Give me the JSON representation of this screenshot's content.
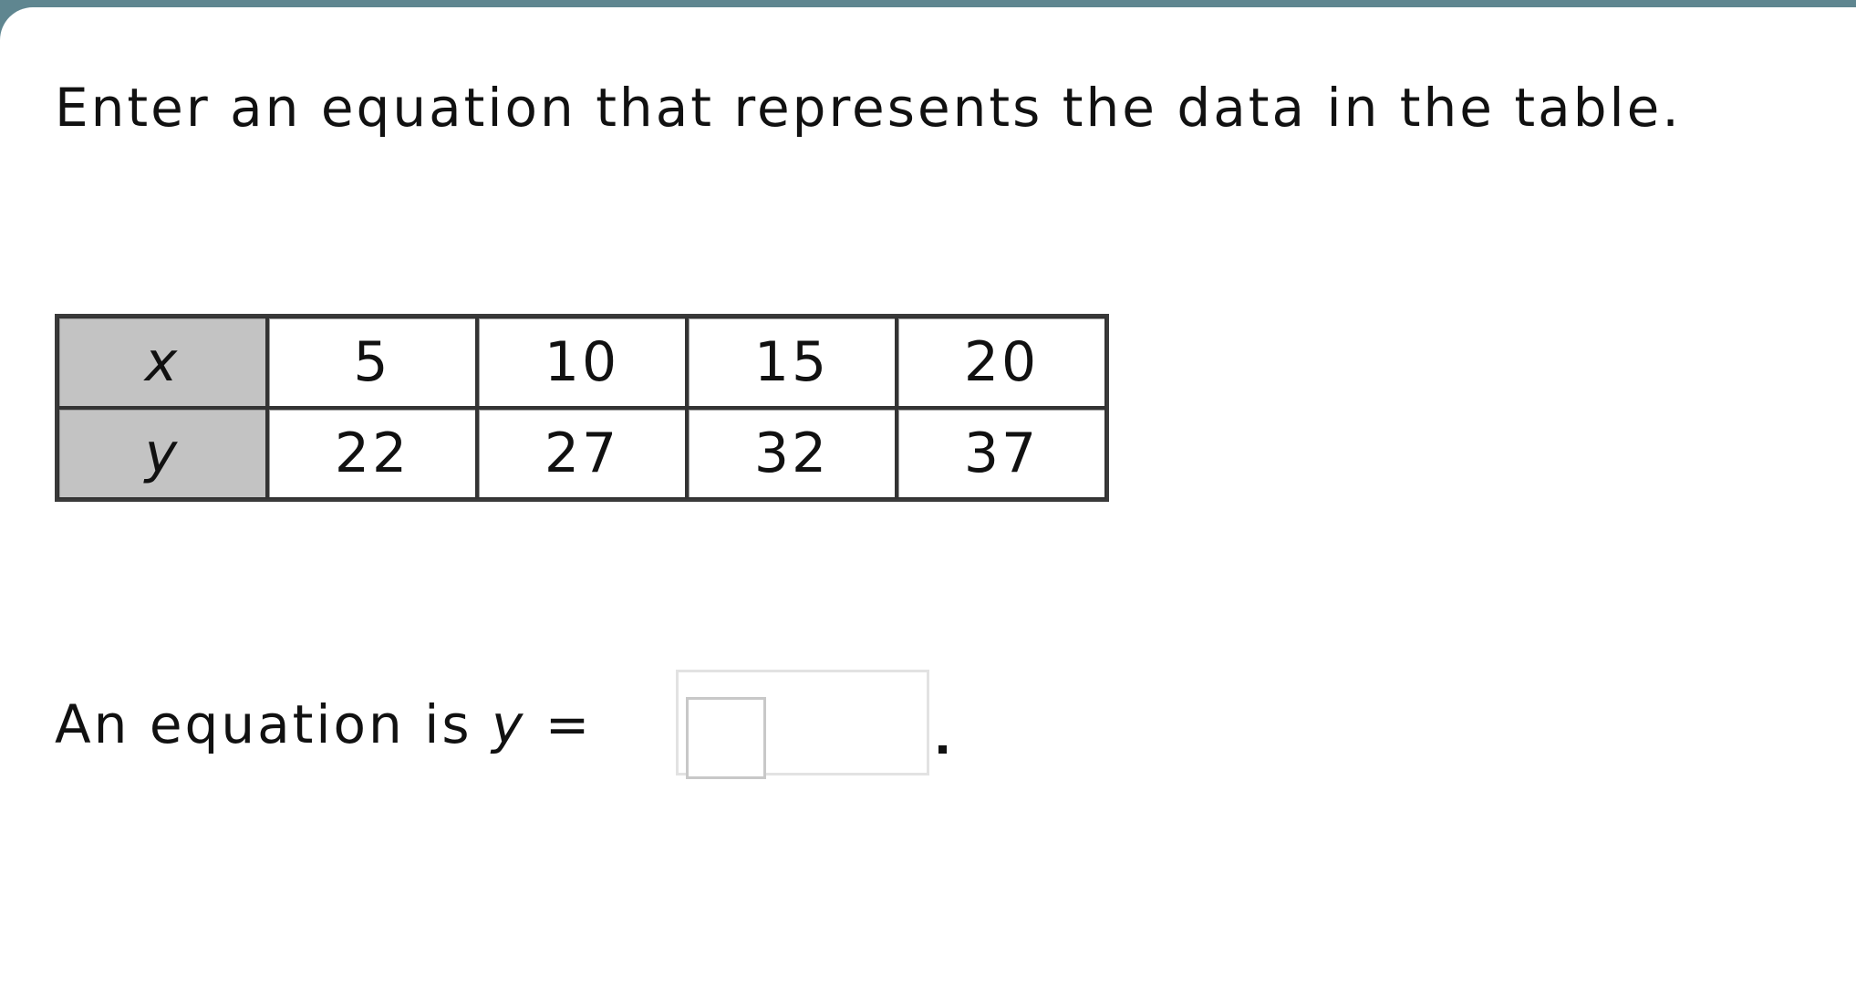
{
  "colors": {
    "header_bar": "#5f8690",
    "label_cell": "#c3c3c3"
  },
  "prompt": "Enter an equation that represents the data in the table.",
  "table": {
    "rows": [
      {
        "label": "x",
        "values": [
          "5",
          "10",
          "15",
          "20"
        ]
      },
      {
        "label": "y",
        "values": [
          "22",
          "27",
          "32",
          "37"
        ]
      }
    ]
  },
  "equation": {
    "prefix": "An equation is ",
    "variable": "y",
    "equals": " = ",
    "answer_value": "",
    "suffix": "."
  }
}
